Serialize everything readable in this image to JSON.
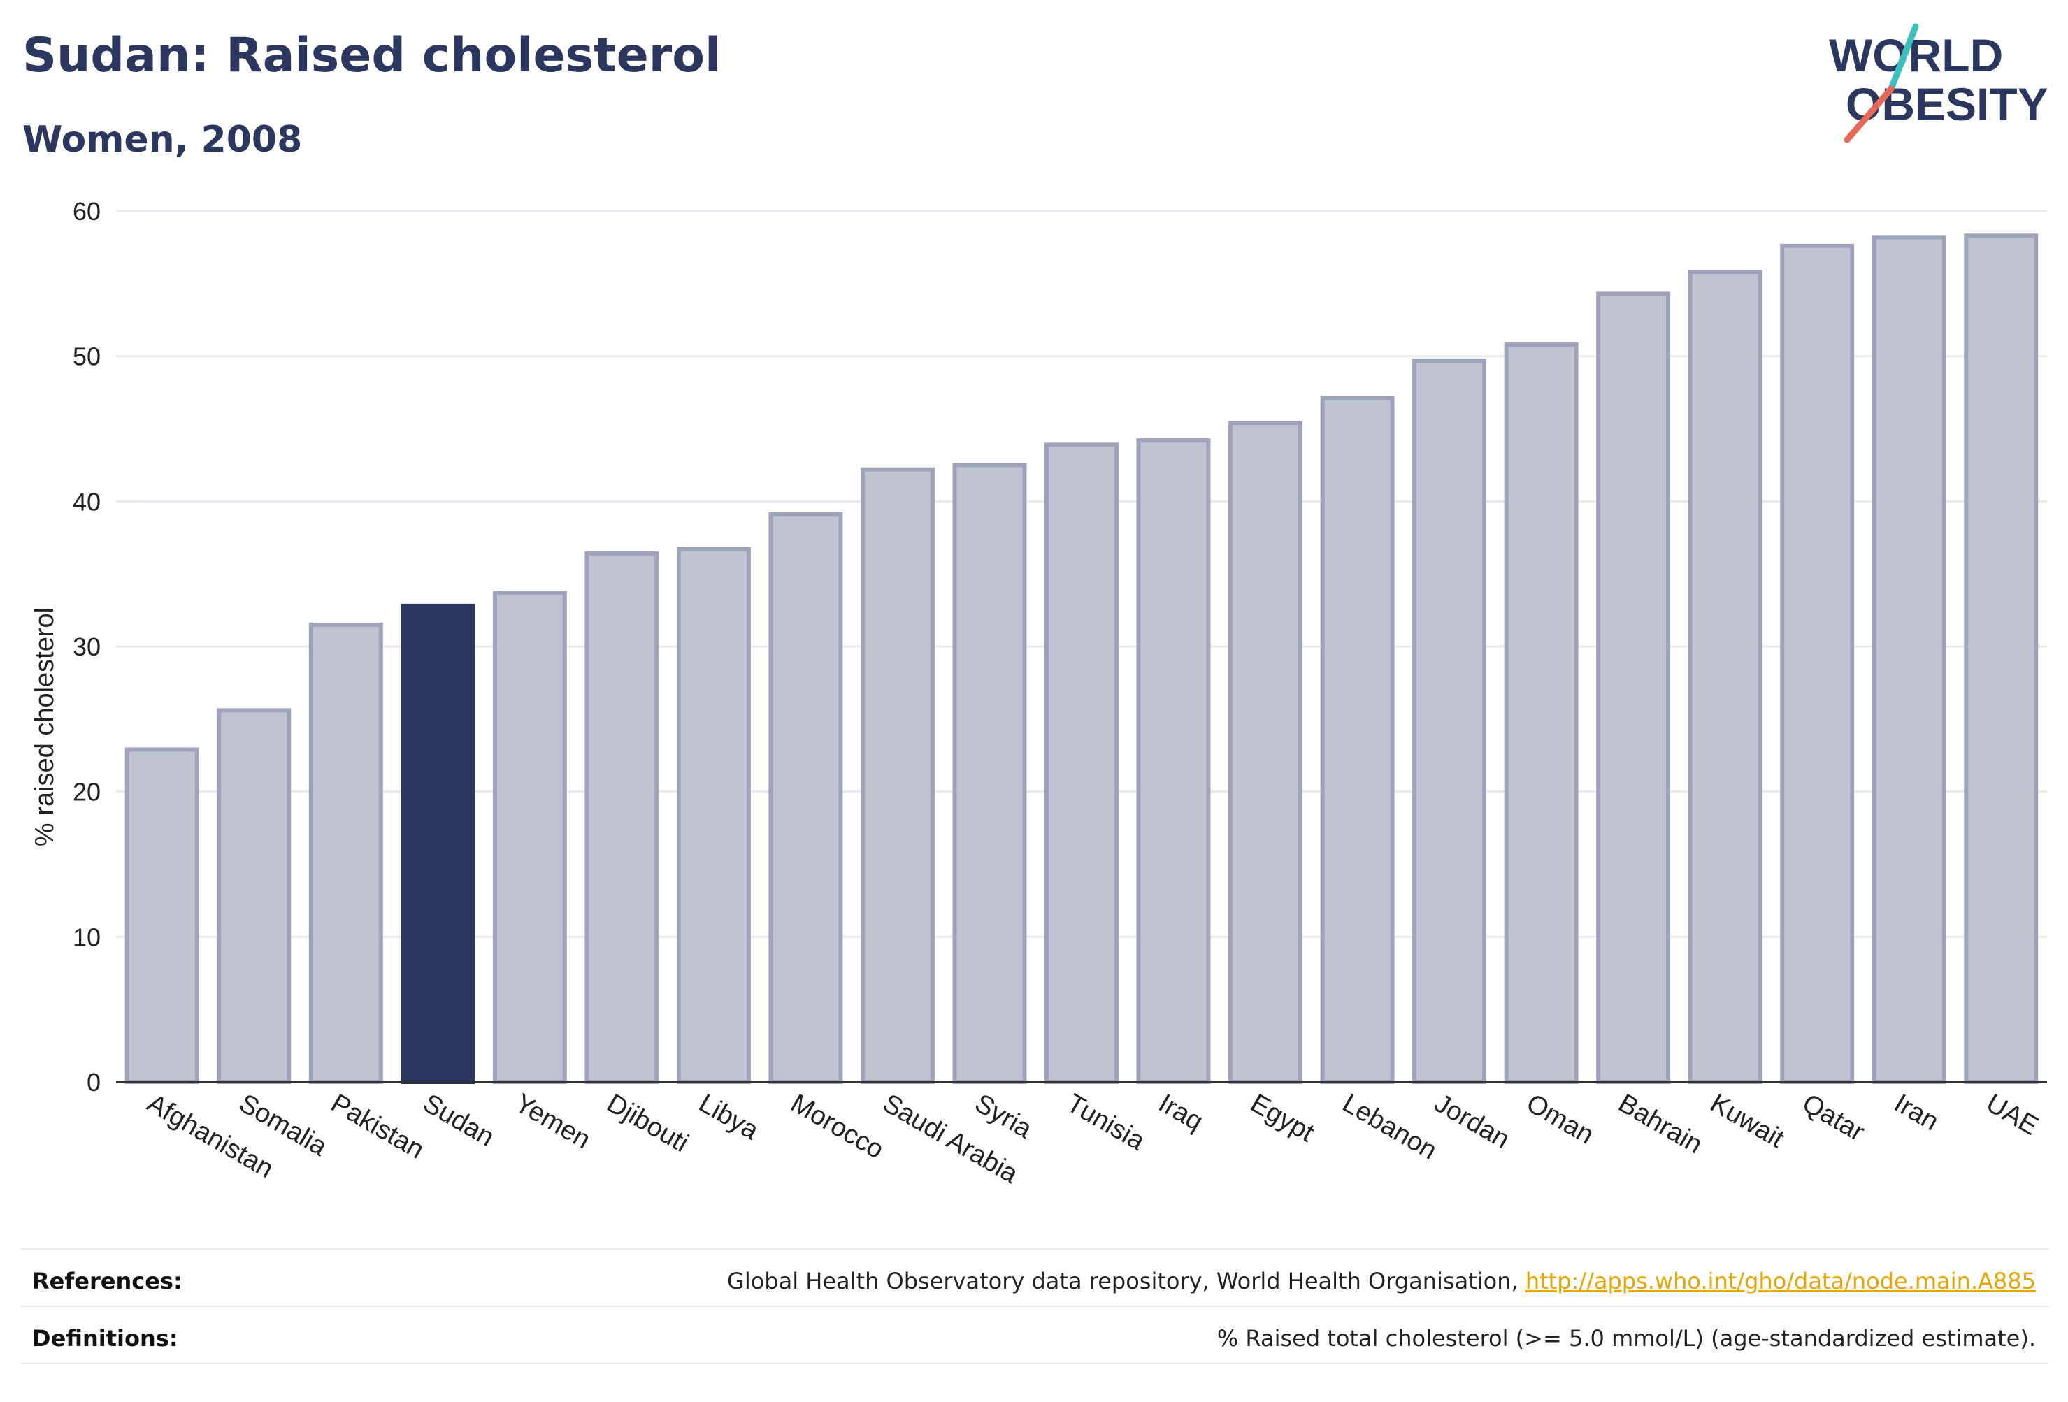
{
  "header": {
    "title": "Sudan: Raised cholesterol",
    "subtitle": "Women, 2008"
  },
  "logo": {
    "line1": "WORLD",
    "line2": "OBESITY",
    "colors": {
      "text": "#2c375f",
      "accent_teal": "#3bbfbf",
      "accent_red": "#e56a5a"
    }
  },
  "colors": {
    "highlight_bar": "#2c375f",
    "other_bar_fill": "#c0c3d0",
    "other_bar_stroke": "#9ea3bb",
    "gridline": "#e8e8ee",
    "axis": "#333333"
  },
  "chart_data": {
    "type": "bar",
    "title": "Sudan: Raised cholesterol",
    "subtitle": "Women, 2008",
    "xlabel": "",
    "ylabel": "% raised cholesterol",
    "ylim": [
      0,
      60
    ],
    "yticks": [
      0,
      10,
      20,
      30,
      40,
      50,
      60
    ],
    "grid": true,
    "highlight": "Sudan",
    "categories": [
      "Afghanistan",
      "Somalia",
      "Pakistan",
      "Sudan",
      "Yemen",
      "Djibouti",
      "Libya",
      "Morocco",
      "Saudi Arabia",
      "Syria",
      "Tunisia",
      "Iraq",
      "Egypt",
      "Lebanon",
      "Jordan",
      "Oman",
      "Bahrain",
      "Kuwait",
      "Qatar",
      "Iran",
      "UAE"
    ],
    "values": [
      22.9,
      25.6,
      31.5,
      32.8,
      33.7,
      36.4,
      36.7,
      39.1,
      42.2,
      42.5,
      43.9,
      44.2,
      45.4,
      47.1,
      49.7,
      50.8,
      54.3,
      55.8,
      57.6,
      58.2,
      58.3
    ]
  },
  "footer": {
    "references_label": "References:",
    "references_text": "Global Health Observatory data repository, World Health Organisation, ",
    "references_link": "http://apps.who.int/gho/data/node.main.A885",
    "definitions_label": "Definitions:",
    "definitions_text": "% Raised total cholesterol (>= 5.0 mmol/L) (age-standardized estimate)."
  }
}
